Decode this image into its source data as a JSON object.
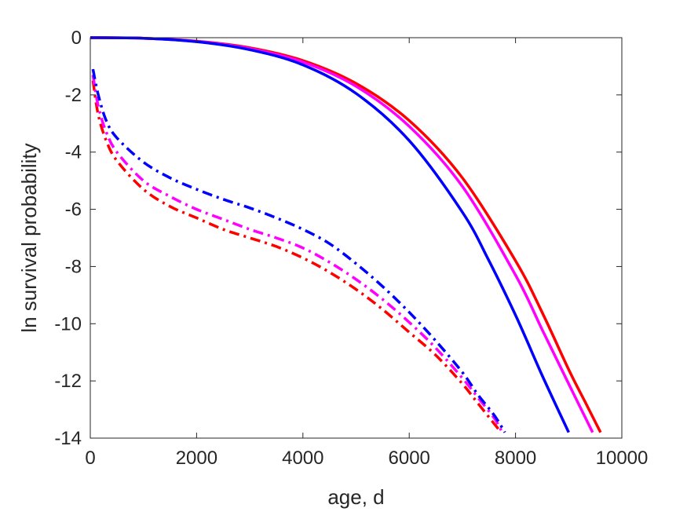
{
  "chart_data": {
    "type": "line",
    "title": "",
    "xlabel": "age, d",
    "ylabel": "ln survival probability",
    "xlim": [
      0,
      10000
    ],
    "ylim": [
      -14,
      0
    ],
    "xticks": [
      0,
      2000,
      4000,
      6000,
      8000,
      10000
    ],
    "yticks": [
      0,
      -2,
      -4,
      -6,
      -8,
      -10,
      -12,
      -14
    ],
    "xtick_labels": [
      "0",
      "2000",
      "4000",
      "6000",
      "8000",
      "10000"
    ],
    "ytick_labels": [
      "0",
      "-2",
      "-4",
      "-6",
      "-8",
      "-10",
      "-12",
      "-14"
    ],
    "grid": false,
    "legend": "none",
    "series": [
      {
        "color": "#ff0000",
        "style": "solid",
        "x": [
          0,
          1000,
          2000,
          3000,
          4000,
          5000,
          6000,
          7000,
          8000,
          8500,
          9000,
          9300,
          9600
        ],
        "y": [
          0,
          -0.02,
          -0.12,
          -0.35,
          -0.8,
          -1.6,
          -2.9,
          -4.9,
          -7.8,
          -9.6,
          -11.6,
          -12.7,
          -13.8
        ]
      },
      {
        "color": "#ff00ff",
        "style": "solid",
        "x": [
          0,
          1000,
          2000,
          3000,
          4000,
          5000,
          6000,
          7000,
          8000,
          8500,
          9000,
          9450
        ],
        "y": [
          0,
          -0.02,
          -0.13,
          -0.38,
          -0.85,
          -1.7,
          -3.1,
          -5.2,
          -8.3,
          -10.2,
          -12.1,
          -13.8
        ]
      },
      {
        "color": "#0000ff",
        "style": "solid",
        "x": [
          0,
          1000,
          2000,
          3000,
          4000,
          5000,
          6000,
          7000,
          7500,
          8000,
          8500,
          9000
        ],
        "y": [
          0,
          -0.02,
          -0.14,
          -0.42,
          -0.95,
          -1.95,
          -3.6,
          -6.1,
          -7.8,
          -9.7,
          -11.8,
          -13.8
        ]
      },
      {
        "color": "#ff0000",
        "style": "dashdot",
        "x": [
          50,
          150,
          300,
          500,
          1000,
          1500,
          2000,
          2500,
          3000,
          3500,
          4000,
          4500,
          5000,
          5500,
          6000,
          6500,
          7000,
          7300,
          7600,
          7730
        ],
        "y": [
          -1.5,
          -2.7,
          -3.6,
          -4.3,
          -5.3,
          -5.9,
          -6.3,
          -6.7,
          -7.0,
          -7.3,
          -7.7,
          -8.2,
          -8.8,
          -9.5,
          -10.3,
          -11.1,
          -12.1,
          -12.8,
          -13.5,
          -13.8
        ]
      },
      {
        "color": "#ff00ff",
        "style": "dashdot",
        "x": [
          50,
          150,
          300,
          500,
          1000,
          1500,
          2000,
          2500,
          3000,
          3500,
          4000,
          4500,
          5000,
          5500,
          6000,
          6500,
          7000,
          7300,
          7600,
          7750
        ],
        "y": [
          -1.3,
          -2.4,
          -3.3,
          -4.0,
          -5.0,
          -5.55,
          -6.0,
          -6.35,
          -6.7,
          -7.0,
          -7.35,
          -7.85,
          -8.45,
          -9.15,
          -9.95,
          -10.85,
          -11.9,
          -12.6,
          -13.3,
          -13.8
        ]
      },
      {
        "color": "#0000ff",
        "style": "dashdot",
        "x": [
          50,
          150,
          300,
          500,
          1000,
          1500,
          2000,
          2500,
          3000,
          3500,
          4000,
          4500,
          5000,
          5500,
          6000,
          6500,
          7000,
          7300,
          7600,
          7800
        ],
        "y": [
          -1.1,
          -2.0,
          -2.9,
          -3.5,
          -4.35,
          -4.9,
          -5.3,
          -5.65,
          -5.95,
          -6.3,
          -6.7,
          -7.2,
          -7.9,
          -8.7,
          -9.6,
          -10.6,
          -11.7,
          -12.5,
          -13.2,
          -13.8
        ]
      }
    ]
  }
}
